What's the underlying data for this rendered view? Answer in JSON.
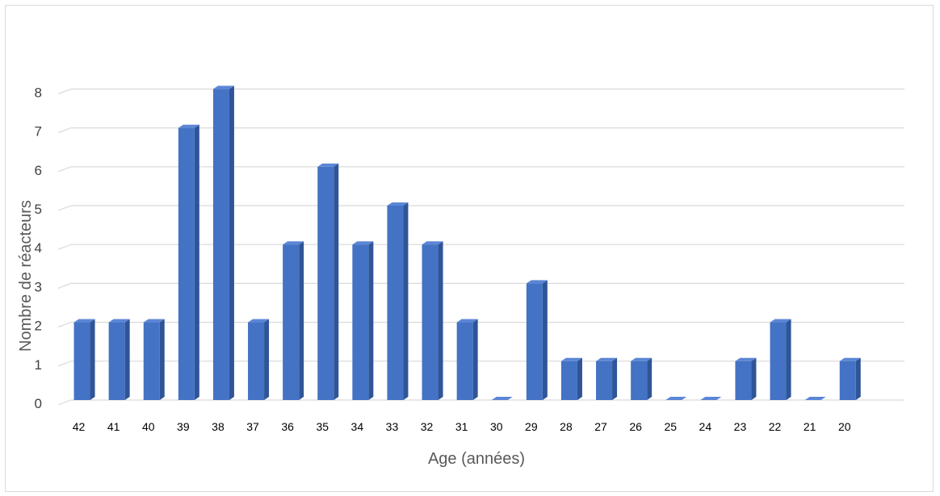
{
  "chart_data": {
    "type": "bar",
    "title": "",
    "xlabel": "Age (années)",
    "ylabel": "Nombre de réacteurs",
    "categories": [
      "42",
      "41",
      "40",
      "39",
      "38",
      "37",
      "36",
      "35",
      "34",
      "33",
      "32",
      "31",
      "30",
      "29",
      "28",
      "27",
      "26",
      "25",
      "24",
      "23",
      "22",
      "21",
      "20"
    ],
    "series": [
      {
        "values": [
          2,
          2,
          2,
          7,
          8,
          2,
          4,
          6,
          4,
          5,
          4,
          2,
          0,
          3,
          1,
          1,
          1,
          0,
          0,
          1,
          2,
          0,
          1
        ]
      }
    ],
    "ylim": [
      0,
      8
    ],
    "yticks": [
      "0",
      "1",
      "2",
      "3",
      "4",
      "5",
      "6",
      "7",
      "8"
    ],
    "grid": true,
    "legend": "none",
    "bar_style": "3d-column",
    "colors": {
      "bar_front": "#4472c4",
      "bar_side": "#2f5597",
      "bar_top": "#5b86d6",
      "gridline": "#d9d9d9"
    }
  }
}
